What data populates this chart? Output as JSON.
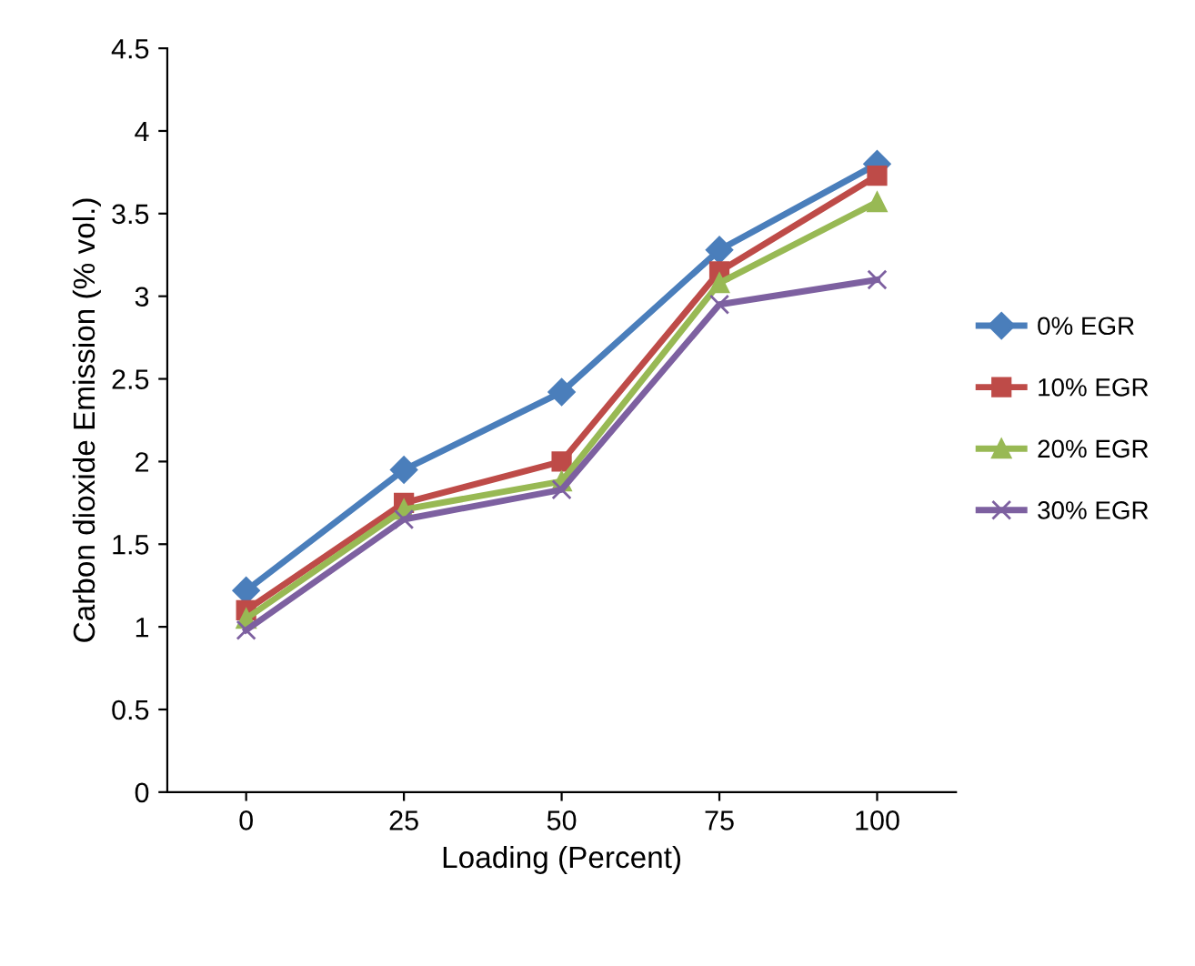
{
  "chart_data": {
    "type": "line",
    "xlabel": "Loading (Percent)",
    "ylabel": "Carbon dioxide Emission (% vol.)",
    "categories": [
      "0",
      "25",
      "50",
      "75",
      "100"
    ],
    "series": [
      {
        "name": "0% EGR",
        "color": "#4a7ebb",
        "marker": "diamond",
        "values": [
          1.22,
          1.95,
          2.42,
          3.28,
          3.8
        ]
      },
      {
        "name": "10% EGR",
        "color": "#be4b48",
        "marker": "square",
        "values": [
          1.1,
          1.75,
          2.0,
          3.15,
          3.73
        ]
      },
      {
        "name": "20% EGR",
        "color": "#98b954",
        "marker": "triangle",
        "values": [
          1.05,
          1.71,
          1.88,
          3.08,
          3.57
        ]
      },
      {
        "name": "30% EGR",
        "color": "#7d60a0",
        "marker": "cross",
        "values": [
          0.98,
          1.65,
          1.83,
          2.95,
          3.1
        ]
      }
    ],
    "ylim": [
      0,
      4.5
    ],
    "yticks": [
      0,
      0.5,
      1,
      1.5,
      2,
      2.5,
      3,
      3.5,
      4,
      4.5
    ],
    "grid": false,
    "legend": "right"
  }
}
